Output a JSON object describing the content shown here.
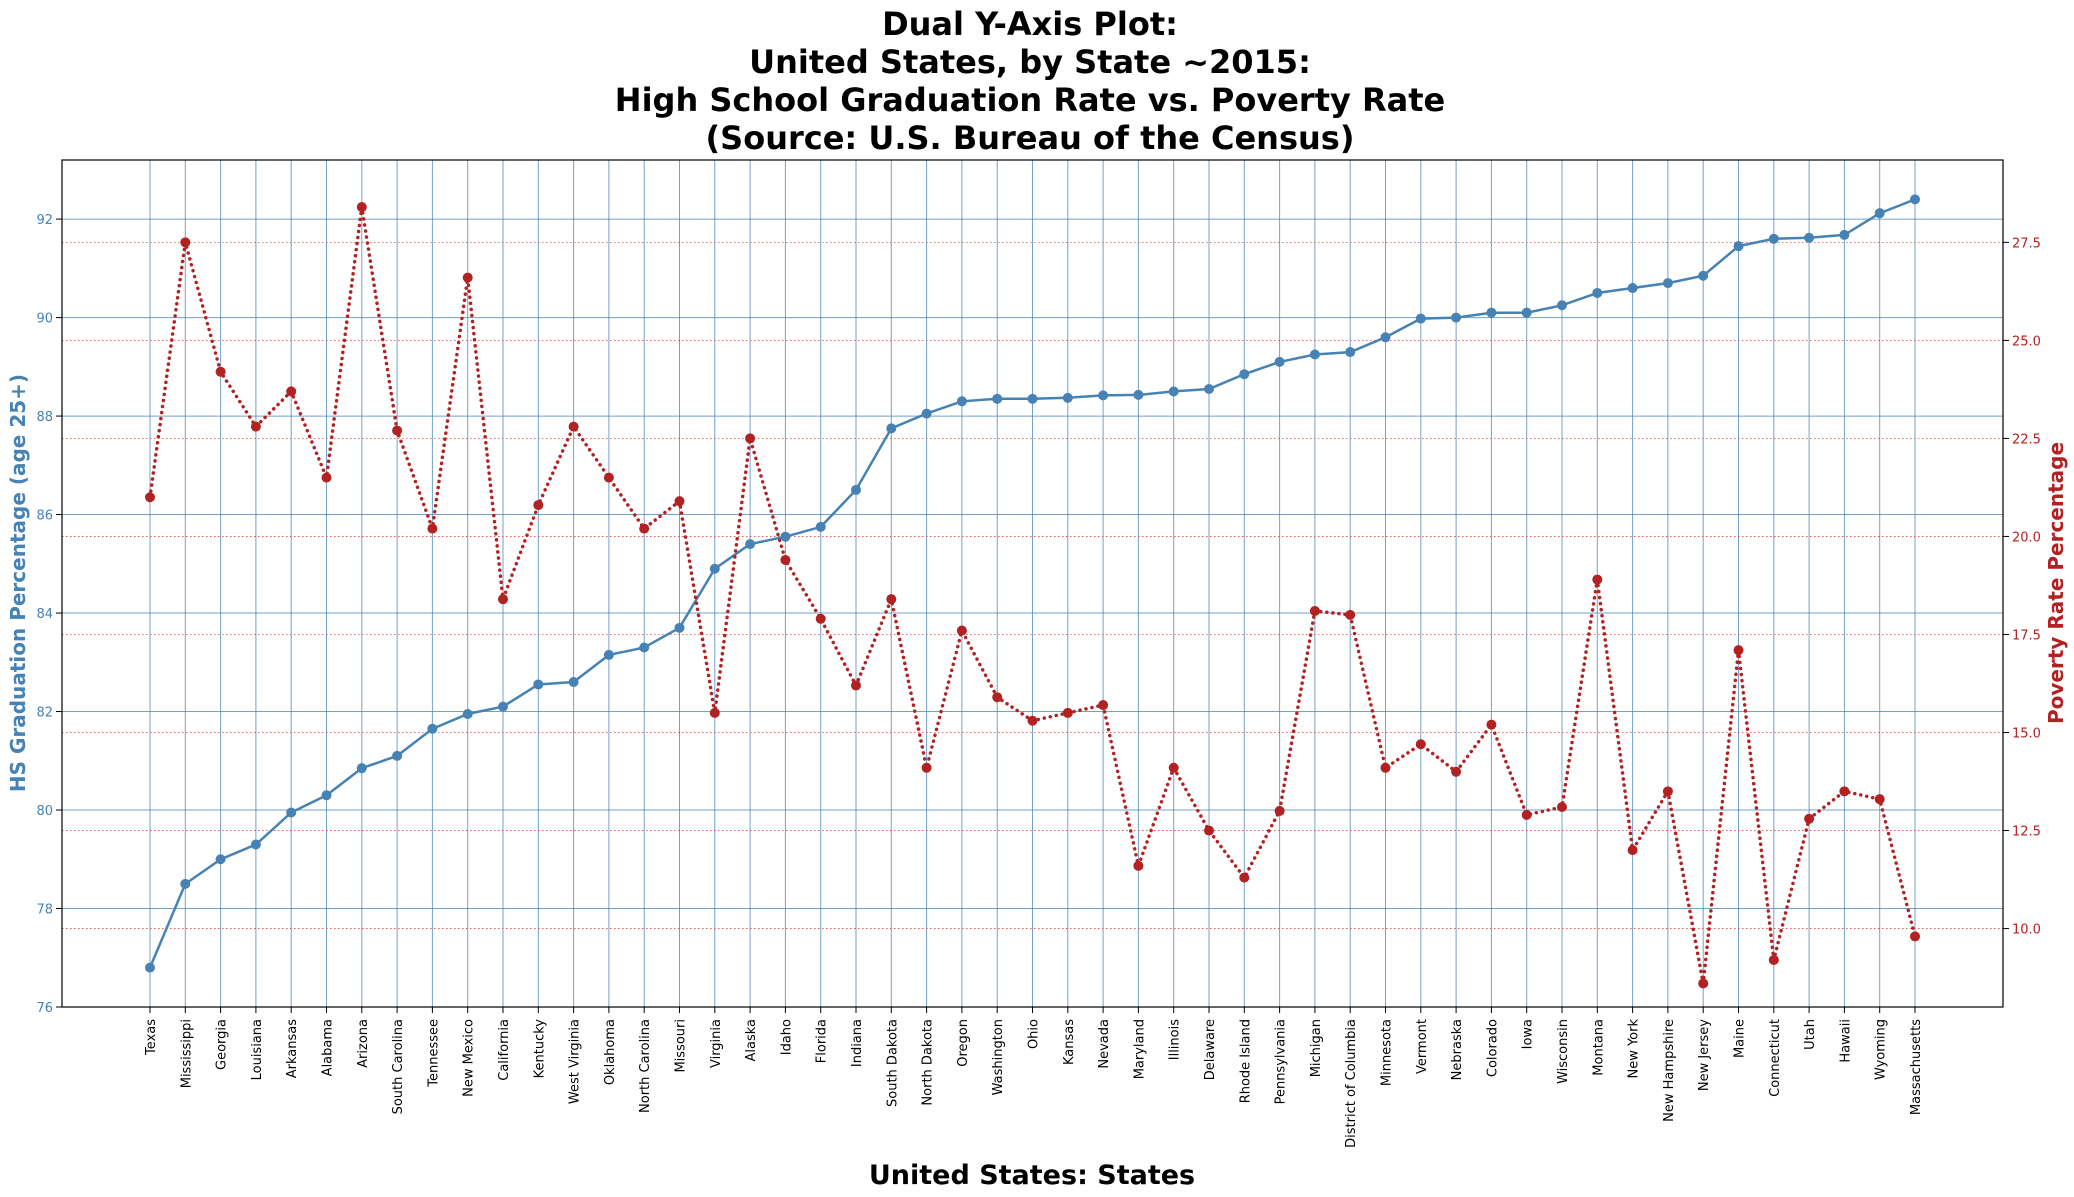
{
  "chart_data": {
    "type": "line",
    "title_lines": [
      "Dual Y-Axis Plot:",
      "United States, by State ~2015:",
      "High School Graduation Rate vs. Poverty Rate",
      "(Source: U.S. Bureau of the Census)"
    ],
    "xlabel": "United States: States",
    "ylabel_left": "HS Graduation Percentage (age 25+)",
    "ylabel_right": "Poverty Rate Percentage",
    "ylim_left": [
      76,
      93.2
    ],
    "ylim_right": [
      8.0,
      29.6
    ],
    "yticks_left": [
      76,
      78,
      80,
      82,
      84,
      86,
      88,
      90,
      92
    ],
    "yticks_right": [
      "10.0",
      "12.5",
      "15.0",
      "17.5",
      "20.0",
      "22.5",
      "25.0",
      "27.5"
    ],
    "grid": true,
    "categories": [
      "Texas",
      "Mississippi",
      "Georgia",
      "Louisiana",
      "Arkansas",
      "Alabama",
      "Arizona",
      "South Carolina",
      "Tennessee",
      "New Mexico",
      "California",
      "Kentucky",
      "West Virginia",
      "Oklahoma",
      "North Carolina",
      "Missouri",
      "Virginia",
      "Alaska",
      "Idaho",
      "Florida",
      "Indiana",
      "South Dakota",
      "North Dakota",
      "Oregon",
      "Washington",
      "Ohio",
      "Kansas",
      "Nevada",
      "Maryland",
      "Illinois",
      "Delaware",
      "Rhode Island",
      "Pennsylvania",
      "Michigan",
      "District of Columbia",
      "Minnesota",
      "Vermont",
      "Nebraska",
      "Colorado",
      "Iowa",
      "Wisconsin",
      "Montana",
      "New York",
      "New Hampshire",
      "New Jersey",
      "Maine",
      "Connecticut",
      "Utah",
      "Hawaii",
      "Wyoming",
      "Massachusetts"
    ],
    "series": [
      {
        "axis": "left",
        "color": "#4682b4",
        "style": "solid",
        "values": [
          76.8,
          78.5,
          79.0,
          79.3,
          79.95,
          80.3,
          80.85,
          81.1,
          81.65,
          81.95,
          82.1,
          82.55,
          82.6,
          83.15,
          83.3,
          83.7,
          84.9,
          85.4,
          85.55,
          85.75,
          86.5,
          87.75,
          88.05,
          88.3,
          88.35,
          88.35,
          88.37,
          88.42,
          88.43,
          88.5,
          88.55,
          88.85,
          89.1,
          89.25,
          89.3,
          89.6,
          89.98,
          90.0,
          90.1,
          90.1,
          90.25,
          90.5,
          90.6,
          90.7,
          90.85,
          91.45,
          91.6,
          91.62,
          91.68,
          92.12,
          92.4
        ]
      },
      {
        "axis": "right",
        "color": "#b22222",
        "style": "dotted",
        "values": [
          21.0,
          27.5,
          24.2,
          22.8,
          23.7,
          21.5,
          28.4,
          22.7,
          20.2,
          26.6,
          18.4,
          20.8,
          22.8,
          21.5,
          20.2,
          20.9,
          15.5,
          22.5,
          19.4,
          17.9,
          16.2,
          18.4,
          14.1,
          17.6,
          15.9,
          15.3,
          15.5,
          15.7,
          11.6,
          14.1,
          12.5,
          11.3,
          13.0,
          18.1,
          18.0,
          14.1,
          14.7,
          14.0,
          15.2,
          12.9,
          13.1,
          18.9,
          12.0,
          13.5,
          8.6,
          17.1,
          9.2,
          12.8,
          13.5,
          13.3,
          9.8
        ]
      }
    ]
  }
}
